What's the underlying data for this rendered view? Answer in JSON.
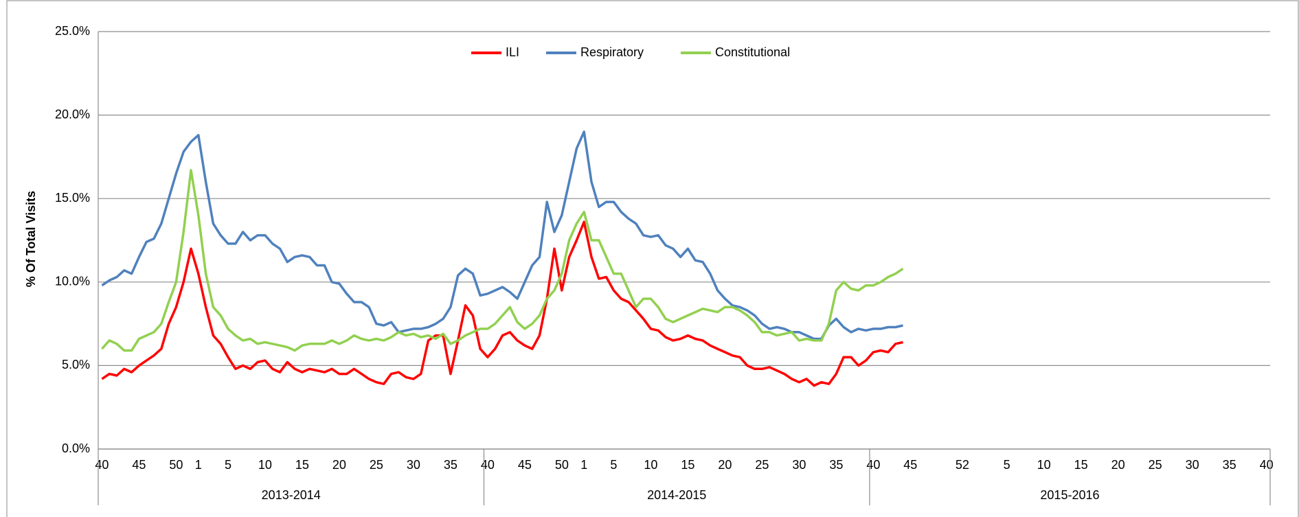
{
  "chart_data": {
    "type": "line",
    "y_label": "% Of Total Visits",
    "groups": [
      {
        "label": "2013-2014",
        "categories": [
          "40",
          null,
          null,
          null,
          null,
          "45",
          null,
          null,
          null,
          null,
          "50",
          null,
          null,
          "1",
          null,
          null,
          null,
          "5",
          null,
          null,
          null,
          null,
          "10",
          null,
          null,
          null,
          null,
          "15",
          null,
          null,
          null,
          null,
          "20",
          null,
          null,
          null,
          null,
          "25",
          null,
          null,
          null,
          null,
          "30",
          null,
          null,
          null,
          null,
          "35",
          null,
          null,
          null,
          null
        ]
      },
      {
        "label": "2014-2015",
        "categories": [
          "40",
          null,
          null,
          null,
          null,
          "45",
          null,
          null,
          null,
          null,
          "50",
          null,
          null,
          "1",
          null,
          null,
          null,
          "5",
          null,
          null,
          null,
          null,
          "10",
          null,
          null,
          null,
          null,
          "15",
          null,
          null,
          null,
          null,
          "20",
          null,
          null,
          null,
          null,
          "25",
          null,
          null,
          null,
          null,
          "30",
          null,
          null,
          null,
          null,
          "35",
          null,
          null,
          null,
          null
        ]
      },
      {
        "label": "2015-2016",
        "categories": [
          "40",
          null,
          null,
          null,
          null,
          "45",
          null,
          null,
          null,
          null,
          null,
          null,
          "52",
          null,
          null,
          null,
          null,
          null,
          "5",
          null,
          null,
          null,
          null,
          "10",
          null,
          null,
          null,
          null,
          "15",
          null,
          null,
          null,
          null,
          "20",
          null,
          null,
          null,
          null,
          "25",
          null,
          null,
          null,
          null,
          "30",
          null,
          null,
          null,
          null,
          "35",
          null,
          null,
          null,
          null,
          "40"
        ]
      }
    ],
    "series": [
      {
        "name": "ILI",
        "color": "#ff0000",
        "values": [
          4.2,
          4.5,
          4.4,
          4.8,
          4.6,
          5.0,
          5.3,
          5.6,
          6.0,
          7.5,
          8.5,
          10.0,
          12.0,
          10.5,
          8.5,
          6.8,
          6.3,
          5.5,
          4.8,
          5.0,
          4.8,
          5.2,
          5.3,
          4.8,
          4.6,
          5.2,
          4.8,
          4.6,
          4.8,
          4.7,
          4.6,
          4.8,
          4.5,
          4.5,
          4.8,
          4.5,
          4.2,
          4.0,
          3.9,
          4.5,
          4.6,
          4.3,
          4.2,
          4.5,
          6.5,
          6.8,
          6.8,
          4.5,
          6.5,
          8.6,
          8.0,
          6.0,
          5.5,
          6.0,
          6.8,
          7.0,
          6.5,
          6.2,
          6.0,
          6.8,
          9.0,
          12.0,
          9.5,
          11.5,
          12.5,
          13.6,
          11.5,
          10.2,
          10.3,
          9.5,
          9.0,
          8.8,
          8.3,
          7.8,
          7.2,
          7.1,
          6.7,
          6.5,
          6.6,
          6.8,
          6.6,
          6.5,
          6.2,
          6.0,
          5.8,
          5.6,
          5.5,
          5.0,
          4.8,
          4.8,
          4.9,
          4.7,
          4.5,
          4.2,
          4.0,
          4.2,
          3.8,
          4.0,
          3.9,
          4.5,
          5.5,
          5.5,
          5.0,
          5.3,
          5.8,
          5.9,
          5.8,
          6.3,
          6.4,
          null,
          null,
          null,
          null,
          null,
          null,
          null,
          null,
          null,
          null,
          null,
          null,
          null,
          null,
          null,
          null,
          null,
          null,
          null,
          null,
          null,
          null,
          null,
          null,
          null,
          null,
          null,
          null,
          null,
          null,
          null,
          null,
          null,
          null,
          null,
          null,
          null,
          null,
          null,
          null,
          null,
          null,
          null,
          null,
          null,
          null,
          null,
          null,
          null
        ]
      },
      {
        "name": "Respiratory",
        "color": "#4f81bd",
        "values": [
          9.8,
          10.1,
          10.3,
          10.7,
          10.5,
          11.5,
          12.4,
          12.6,
          13.5,
          15.0,
          16.5,
          17.8,
          18.4,
          18.8,
          16.0,
          13.5,
          12.8,
          12.3,
          12.3,
          13.0,
          12.5,
          12.8,
          12.8,
          12.3,
          12.0,
          11.2,
          11.5,
          11.6,
          11.5,
          11.0,
          11.0,
          10.0,
          9.9,
          9.3,
          8.8,
          8.8,
          8.5,
          7.5,
          7.4,
          7.6,
          7.0,
          7.1,
          7.2,
          7.2,
          7.3,
          7.5,
          7.8,
          8.5,
          10.4,
          10.8,
          10.5,
          9.2,
          9.3,
          9.5,
          9.7,
          9.4,
          9.0,
          10.0,
          11.0,
          11.5,
          14.8,
          13.0,
          14.0,
          16.0,
          18.0,
          19.0,
          16.0,
          14.5,
          14.8,
          14.8,
          14.2,
          13.8,
          13.5,
          12.8,
          12.7,
          12.8,
          12.2,
          12.0,
          11.5,
          12.0,
          11.3,
          11.2,
          10.5,
          9.5,
          9.0,
          8.6,
          8.5,
          8.3,
          8.0,
          7.5,
          7.2,
          7.3,
          7.2,
          7.0,
          7.0,
          6.8,
          6.6,
          6.6,
          7.4,
          7.8,
          7.3,
          7.0,
          7.2,
          7.1,
          7.2,
          7.2,
          7.3,
          7.3,
          7.4,
          null,
          null,
          null,
          null,
          null,
          null,
          null,
          null,
          null,
          null,
          null,
          null,
          null,
          null,
          null,
          null,
          null,
          null,
          null,
          null,
          null,
          null,
          null,
          null,
          null,
          null,
          null,
          null,
          null,
          null,
          null,
          null,
          null,
          null,
          null,
          null,
          null,
          null,
          null,
          null,
          null,
          null,
          null,
          null,
          null,
          null,
          null,
          null,
          null
        ]
      },
      {
        "name": "Constitutional",
        "color": "#92d050",
        "values": [
          6.0,
          6.5,
          6.3,
          5.9,
          5.9,
          6.6,
          6.8,
          7.0,
          7.5,
          8.8,
          10.0,
          13.0,
          16.7,
          14.0,
          10.5,
          8.5,
          8.0,
          7.2,
          6.8,
          6.5,
          6.6,
          6.3,
          6.4,
          6.3,
          6.2,
          6.1,
          5.9,
          6.2,
          6.3,
          6.3,
          6.3,
          6.5,
          6.3,
          6.5,
          6.8,
          6.6,
          6.5,
          6.6,
          6.5,
          6.7,
          7.0,
          6.8,
          6.9,
          6.7,
          6.8,
          6.6,
          6.9,
          6.3,
          6.5,
          6.8,
          7.0,
          7.2,
          7.2,
          7.5,
          8.0,
          8.5,
          7.6,
          7.2,
          7.5,
          8.0,
          9.0,
          9.5,
          10.5,
          12.5,
          13.5,
          14.2,
          12.5,
          12.5,
          11.5,
          10.5,
          10.5,
          9.5,
          8.5,
          9.0,
          9.0,
          8.5,
          7.8,
          7.6,
          7.8,
          8.0,
          8.2,
          8.4,
          8.3,
          8.2,
          8.5,
          8.5,
          8.3,
          8.0,
          7.6,
          7.0,
          7.0,
          6.8,
          6.9,
          7.0,
          6.5,
          6.6,
          6.5,
          6.5,
          7.5,
          9.5,
          10.0,
          9.6,
          9.5,
          9.8,
          9.8,
          10.0,
          10.3,
          10.5,
          10.8,
          null,
          null,
          null,
          null,
          null,
          null,
          null,
          null,
          null,
          null,
          null,
          null,
          null,
          null,
          null,
          null,
          null,
          null,
          null,
          null,
          null,
          null,
          null,
          null,
          null,
          null,
          null,
          null,
          null,
          null,
          null,
          null,
          null,
          null,
          null,
          null,
          null,
          null,
          null,
          null,
          null,
          null,
          null,
          null,
          null,
          null,
          null,
          null,
          null
        ]
      }
    ],
    "ylim": [
      0,
      25
    ],
    "yticks": [
      {
        "value": 0,
        "label": "0.0%"
      },
      {
        "value": 5,
        "label": "5.0%"
      },
      {
        "value": 10,
        "label": "10.0%"
      },
      {
        "value": 15,
        "label": "15.0%"
      },
      {
        "value": 20,
        "label": "20.0%"
      },
      {
        "value": 25,
        "label": "25.0%"
      }
    ],
    "grid": true,
    "legend": "top"
  }
}
